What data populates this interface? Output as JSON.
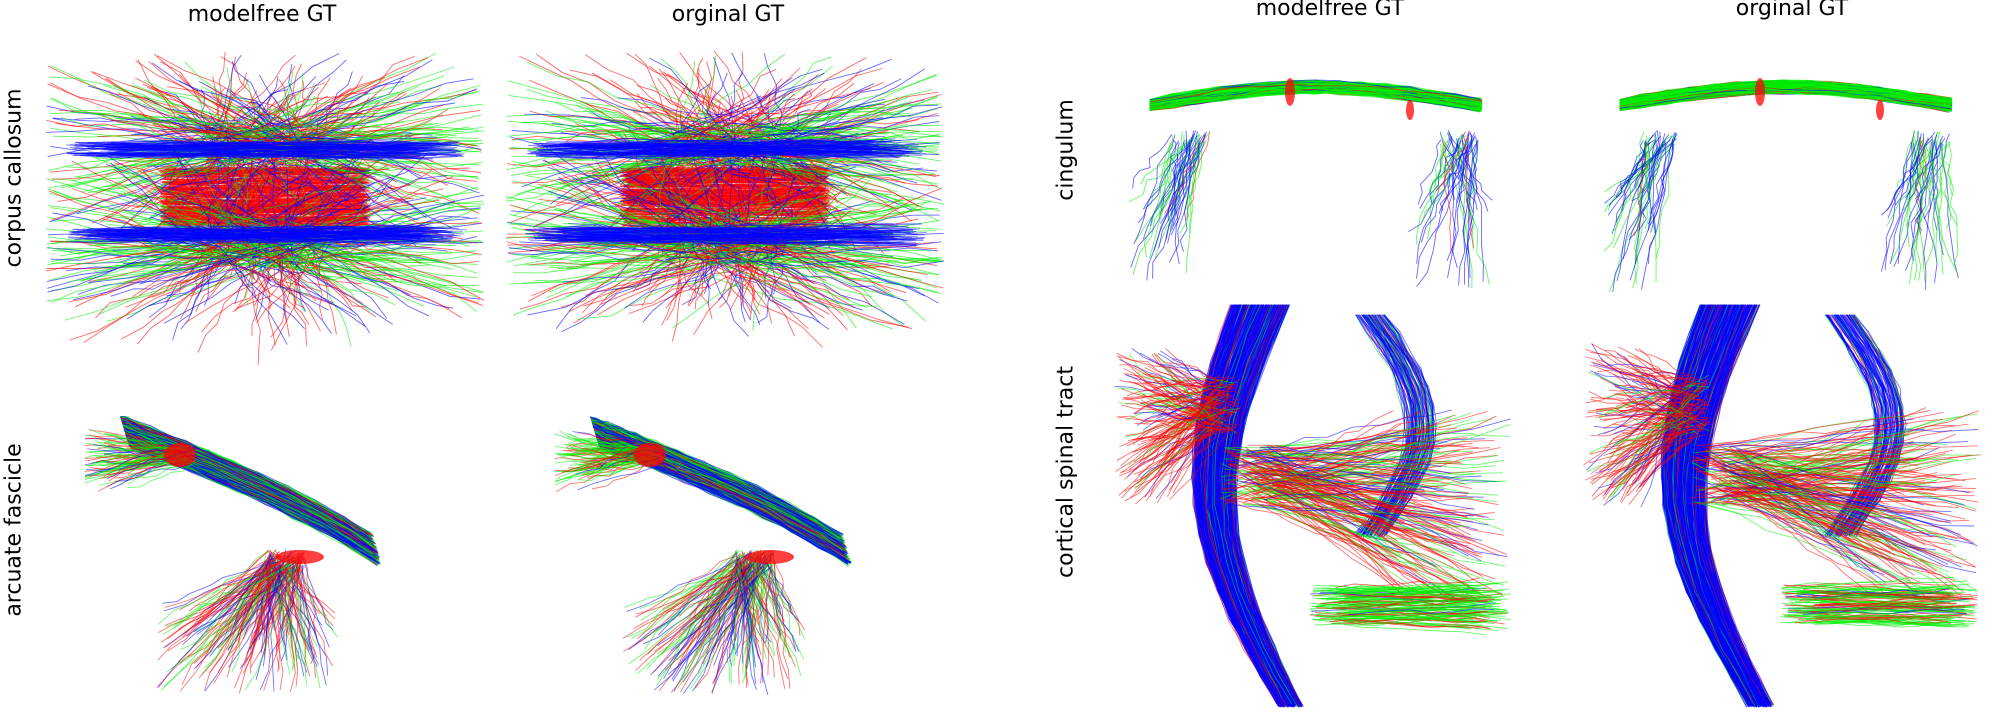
{
  "figure": {
    "column_titles": [
      "modelfree GT",
      "orginal GT",
      "modelfree GT",
      "orginal GT"
    ],
    "row_labels": [
      "corpus callosum",
      "arcuate fascicle",
      "cingulum",
      "cortical spinal tract"
    ],
    "colors": {
      "left_right": "#ff0000",
      "anterior_posterior": "#00ee00",
      "superior_inferior": "#0000ff"
    }
  }
}
